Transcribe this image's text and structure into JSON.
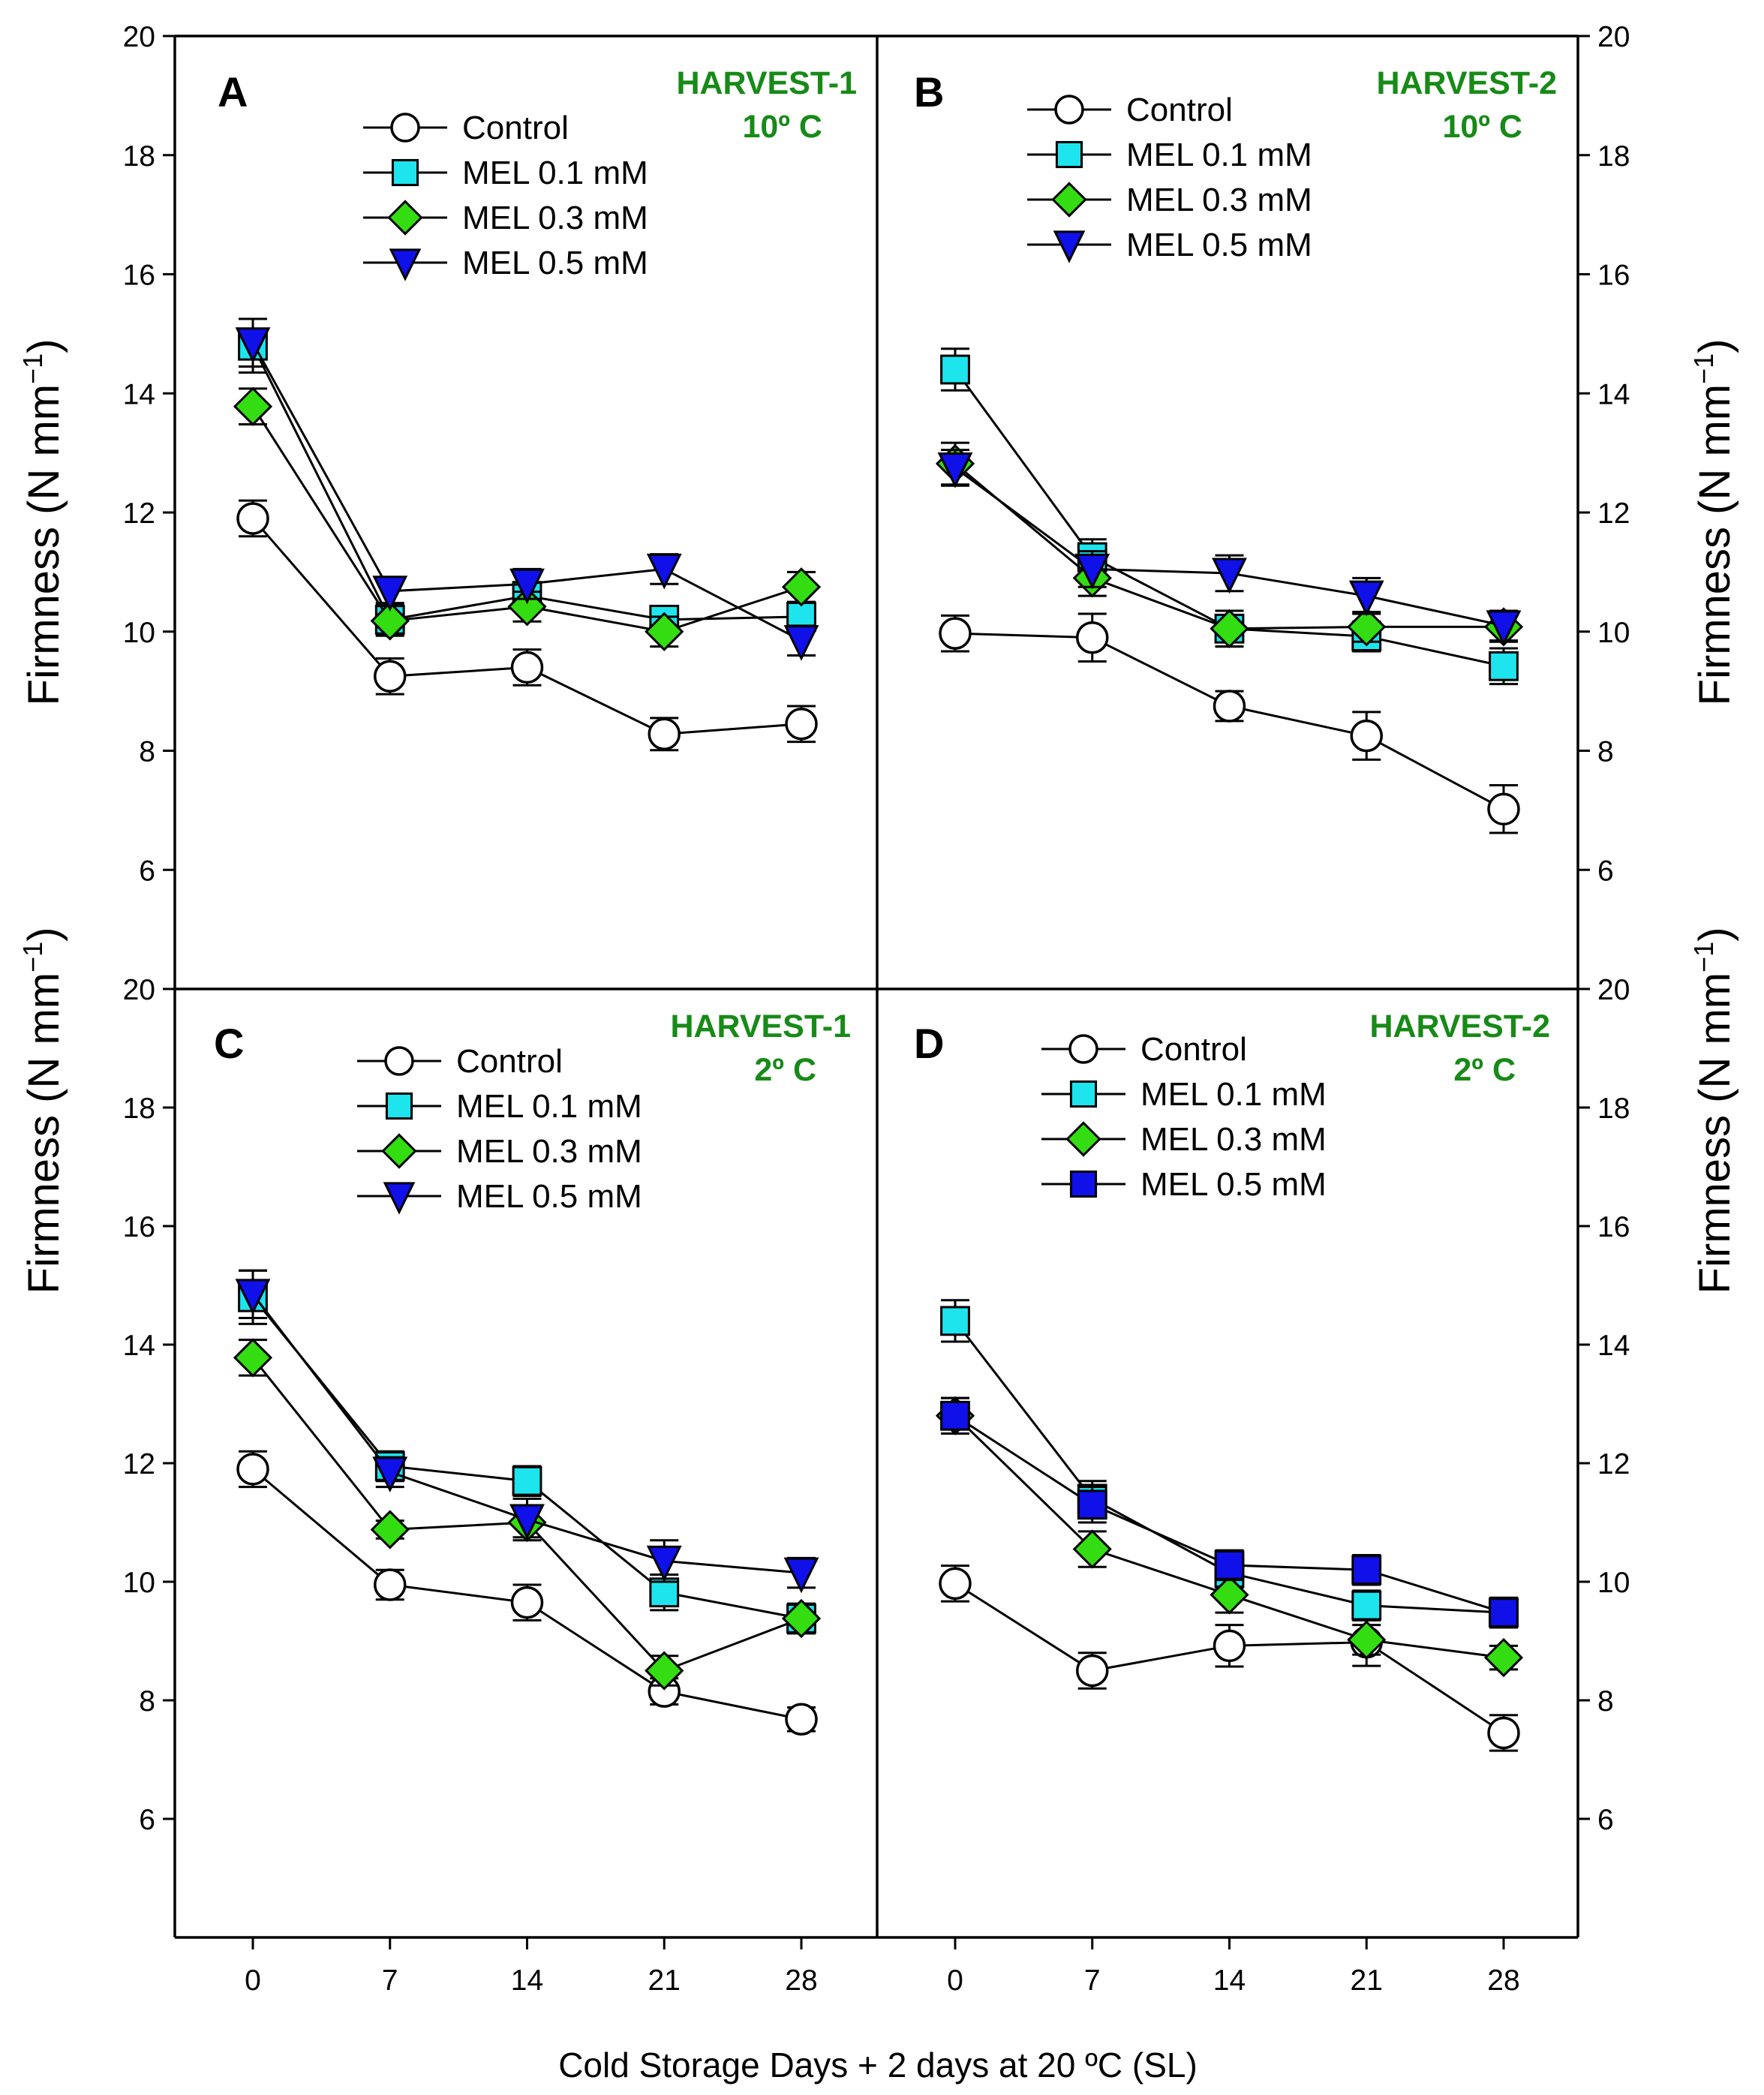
{
  "figure": {
    "xlabel": "Cold Storage Days + 2 days at 20 ºC (SL)",
    "ylabel_main": "Firmness (N mm",
    "ylabel_sup": "−1",
    "ylabel_close": ")"
  },
  "colors": {
    "control": "#ffffff",
    "mel01": "#1ee4ee",
    "mel03": "#33dd11",
    "mel05": "#1010e8",
    "harvest_text": "#178a17"
  },
  "chart_data": [
    {
      "type": "line",
      "panel": "A",
      "annotation": [
        "HARVEST-1",
        "10º C"
      ],
      "xlabel": "Cold Storage Days + 2 days at 20 ºC (SL)",
      "ylabel": "Firmness (N mm−1)",
      "x": [
        0,
        7,
        14,
        21,
        28
      ],
      "xticks": [
        "0",
        "7",
        "14",
        "21",
        "28"
      ],
      "ylim": [
        4,
        20
      ],
      "yticks": [
        6,
        8,
        10,
        12,
        14,
        16,
        18,
        20
      ],
      "legend": [
        "Control",
        "MEL 0.1 mM",
        "MEL 0.3 mM",
        "MEL 0.5 mM"
      ],
      "series": [
        {
          "name": "Control",
          "marker": "circle",
          "color_key": "control",
          "values": [
            11.9,
            9.25,
            9.4,
            8.28,
            8.45
          ],
          "errors": [
            0.3,
            0.3,
            0.3,
            0.27,
            0.3
          ]
        },
        {
          "name": "MEL 0.1 mM",
          "marker": "square",
          "color_key": "mel01",
          "values": [
            14.8,
            10.2,
            10.6,
            10.2,
            10.25
          ],
          "errors": [
            0.45,
            0.25,
            0.2,
            0.22,
            0.22
          ]
        },
        {
          "name": "MEL 0.3 mM",
          "marker": "diamond",
          "color_key": "mel03",
          "values": [
            13.78,
            10.18,
            10.42,
            10.0,
            10.75
          ],
          "errors": [
            0.3,
            0.25,
            0.25,
            0.25,
            0.25
          ]
        },
        {
          "name": "MEL 0.5 mM",
          "marker": "triangle-down",
          "color_key": "mel05",
          "values": [
            14.85,
            10.68,
            10.8,
            11.05,
            9.85
          ],
          "errors": [
            0.4,
            0.2,
            0.25,
            0.25,
            0.25
          ]
        }
      ]
    },
    {
      "type": "line",
      "panel": "B",
      "annotation": [
        "HARVEST-2",
        "10º C"
      ],
      "xlabel": "Cold Storage Days + 2 days at 20 ºC (SL)",
      "ylabel": "Firmness (N mm−1)",
      "x": [
        0,
        7,
        14,
        21,
        28
      ],
      "xticks": [
        "0",
        "7",
        "14",
        "21",
        "28"
      ],
      "ylim": [
        4,
        20
      ],
      "yticks": [
        6,
        8,
        10,
        12,
        14,
        16,
        18,
        20
      ],
      "legend": [
        "Control",
        "MEL 0.1 mM",
        "MEL 0.3 mM",
        "MEL 0.5 mM"
      ],
      "series": [
        {
          "name": "Control",
          "marker": "circle",
          "color_key": "control",
          "values": [
            9.97,
            9.9,
            8.75,
            8.25,
            7.02
          ],
          "errors": [
            0.3,
            0.4,
            0.25,
            0.4,
            0.4
          ]
        },
        {
          "name": "MEL 0.1 mM",
          "marker": "square",
          "color_key": "mel01",
          "values": [
            14.4,
            11.25,
            10.05,
            9.92,
            9.42
          ],
          "errors": [
            0.35,
            0.3,
            0.3,
            0.25,
            0.3
          ]
        },
        {
          "name": "MEL 0.3 mM",
          "marker": "diamond",
          "color_key": "mel03",
          "values": [
            12.82,
            10.9,
            10.05,
            10.08,
            10.08
          ],
          "errors": [
            0.35,
            0.3,
            0.3,
            0.25,
            0.25
          ]
        },
        {
          "name": "MEL 0.5 mM",
          "marker": "triangle-down",
          "color_key": "mel05",
          "values": [
            12.75,
            11.05,
            10.98,
            10.6,
            10.1
          ],
          "errors": [
            0.3,
            0.3,
            0.3,
            0.3,
            0.25
          ]
        }
      ]
    },
    {
      "type": "line",
      "panel": "C",
      "annotation": [
        "HARVEST-1",
        "2º C"
      ],
      "xlabel": "Cold Storage Days + 2 days at 20 ºC (SL)",
      "ylabel": "Firmness (N mm−1)",
      "x": [
        0,
        7,
        14,
        21,
        28
      ],
      "xticks": [
        "0",
        "7",
        "14",
        "21",
        "28"
      ],
      "ylim": [
        4,
        20
      ],
      "yticks": [
        6,
        8,
        10,
        12,
        14,
        16,
        18,
        20
      ],
      "legend": [
        "Control",
        "MEL 0.1 mM",
        "MEL 0.3 mM",
        "MEL 0.5 mM"
      ],
      "series": [
        {
          "name": "Control",
          "marker": "circle",
          "color_key": "control",
          "values": [
            11.9,
            9.95,
            9.65,
            8.15,
            7.68
          ],
          "errors": [
            0.3,
            0.25,
            0.3,
            0.22,
            0.2
          ]
        },
        {
          "name": "MEL 0.1 mM",
          "marker": "square",
          "color_key": "mel01",
          "values": [
            14.8,
            11.95,
            11.7,
            9.82,
            9.38
          ],
          "errors": [
            0.45,
            0.25,
            0.25,
            0.3,
            0.25
          ]
        },
        {
          "name": "MEL 0.3 mM",
          "marker": "diamond",
          "color_key": "mel03",
          "values": [
            13.78,
            10.88,
            11.0,
            8.5,
            9.38
          ],
          "errors": [
            0.3,
            0.15,
            0.25,
            0.25,
            0.25
          ]
        },
        {
          "name": "MEL 0.5 mM",
          "marker": "triangle-down",
          "color_key": "mel05",
          "values": [
            14.85,
            11.85,
            11.05,
            10.35,
            10.15
          ],
          "errors": [
            0.4,
            0.25,
            0.35,
            0.35,
            0.25
          ]
        }
      ]
    },
    {
      "type": "line",
      "panel": "D",
      "annotation": [
        "HARVEST-2",
        "2º C"
      ],
      "xlabel": "Cold Storage Days + 2 days at 20 ºC (SL)",
      "ylabel": "Firmness (N mm−1)",
      "x": [
        0,
        7,
        14,
        21,
        28
      ],
      "xticks": [
        "0",
        "7",
        "14",
        "21",
        "28"
      ],
      "ylim": [
        4,
        20
      ],
      "yticks": [
        6,
        8,
        10,
        12,
        14,
        16,
        18,
        20
      ],
      "legend": [
        "Control",
        "MEL 0.1 mM",
        "MEL 0.3 mM",
        "MEL 0.5 mM"
      ],
      "series": [
        {
          "name": "Control",
          "marker": "circle",
          "color_key": "control",
          "values": [
            9.97,
            8.5,
            8.92,
            8.98,
            7.45
          ],
          "errors": [
            0.3,
            0.3,
            0.35,
            0.4,
            0.3
          ]
        },
        {
          "name": "MEL 0.1 mM",
          "marker": "square",
          "color_key": "mel01",
          "values": [
            14.4,
            11.4,
            10.15,
            9.6,
            9.48
          ],
          "errors": [
            0.35,
            0.3,
            0.25,
            0.25,
            0.25
          ]
        },
        {
          "name": "MEL 0.3 mM",
          "marker": "diamond",
          "color_key": "mel03",
          "values": [
            12.8,
            10.55,
            9.78,
            9.02,
            8.72
          ],
          "errors": [
            0.3,
            0.3,
            0.3,
            0.25,
            0.2
          ]
        },
        {
          "name": "MEL 0.5 mM",
          "marker": "square",
          "color_key": "mel05",
          "values": [
            12.8,
            11.3,
            10.28,
            10.2,
            9.48
          ],
          "errors": [
            0.3,
            0.3,
            0.25,
            0.25,
            0.25
          ]
        }
      ]
    }
  ]
}
